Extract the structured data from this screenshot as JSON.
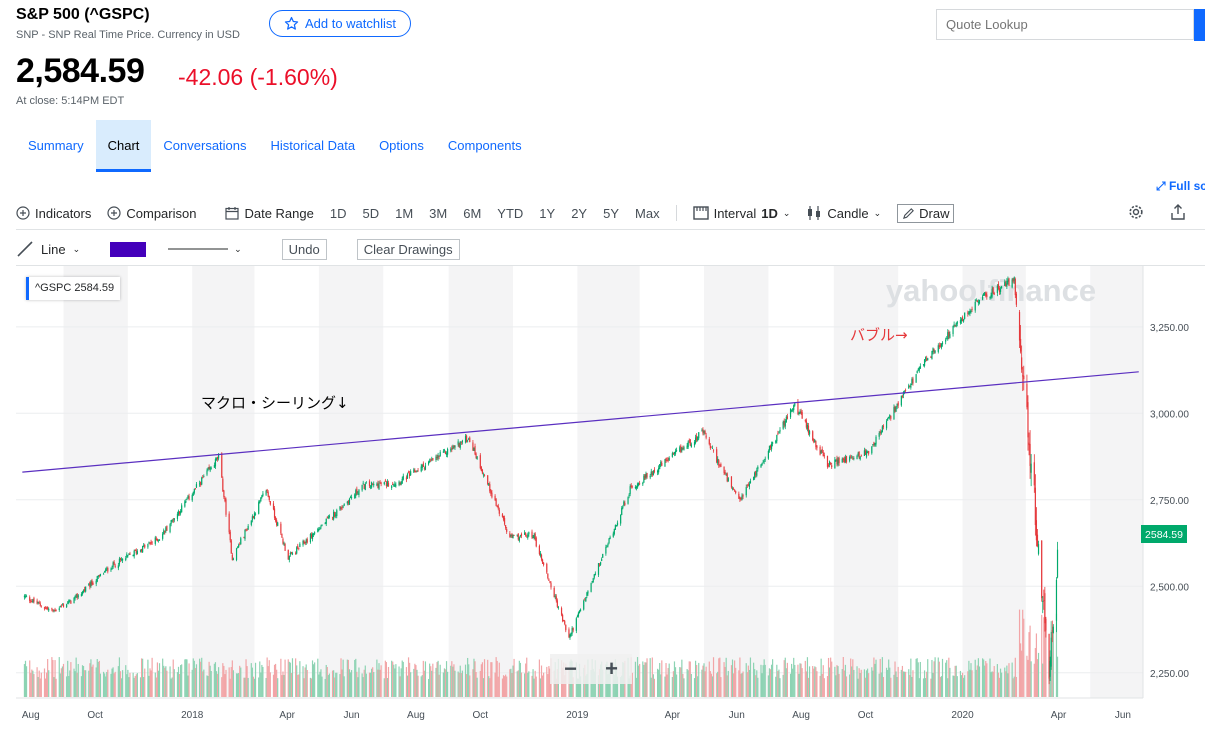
{
  "header": {
    "title": "S&P 500 (^GSPC)",
    "subtitle": "SNP - SNP Real Time Price. Currency in USD",
    "watchlist_label": "Add to watchlist",
    "quote_placeholder": "Quote Lookup",
    "price": "2,584.59",
    "change": "-42.06 (-1.60%)",
    "at_close": "At close: 5:14PM EDT",
    "change_color": "#eb0f29"
  },
  "tabs": [
    {
      "label": "Summary",
      "active": false
    },
    {
      "label": "Chart",
      "active": true
    },
    {
      "label": "Conversations",
      "active": false
    },
    {
      "label": "Historical Data",
      "active": false
    },
    {
      "label": "Options",
      "active": false
    },
    {
      "label": "Components",
      "active": false
    }
  ],
  "fullscreen_label": "Full sc",
  "toolbar": {
    "indicators": "Indicators",
    "comparison": "Comparison",
    "date_range": "Date Range",
    "ranges": [
      "1D",
      "5D",
      "1M",
      "3M",
      "6M",
      "YTD",
      "1Y",
      "2Y",
      "5Y",
      "Max"
    ],
    "interval_label": "Interval",
    "interval_value": "1D",
    "chart_type": "Candle",
    "draw": "Draw"
  },
  "draw_toolbar": {
    "line_label": "Line",
    "color": "#4400bb",
    "undo": "Undo",
    "clear": "Clear Drawings"
  },
  "legend": {
    "symbol": "^GSPC",
    "value": "2584.59"
  },
  "watermark": "yahoo!finance",
  "annotations": {
    "ceiling": "マクロ・シーリング↓",
    "bubble": "バブル→"
  },
  "current_price_label": "2584.59",
  "chart_data": {
    "type": "candlestick",
    "series": [
      {
        "name": "^GSPC",
        "color_up": "#00a96b",
        "color_down": "#e5383b"
      }
    ],
    "x_ticks": [
      "Aug",
      "Oct",
      "2018",
      "Apr",
      "Jun",
      "Aug",
      "Oct",
      "2019",
      "Apr",
      "Jun",
      "Aug",
      "Oct",
      "2020",
      "Apr",
      "Jun"
    ],
    "y_ticks": [
      "3,250.00",
      "3,000.00",
      "2,750.00",
      "2,500.00",
      "2,250.00"
    ],
    "ylim": [
      2180,
      3420
    ],
    "close_points": [
      [
        "2017-07-26",
        2470
      ],
      [
        "2017-08-21",
        2428
      ],
      [
        "2017-09-10",
        2460
      ],
      [
        "2017-10-15",
        2555
      ],
      [
        "2017-12-01",
        2640
      ],
      [
        "2018-01-26",
        2873
      ],
      [
        "2018-02-08",
        2581
      ],
      [
        "2018-03-12",
        2780
      ],
      [
        "2018-04-02",
        2582
      ],
      [
        "2018-06-12",
        2790
      ],
      [
        "2018-07-15",
        2800
      ],
      [
        "2018-09-20",
        2930
      ],
      [
        "2018-10-29",
        2640
      ],
      [
        "2018-11-20",
        2650
      ],
      [
        "2018-12-24",
        2351
      ],
      [
        "2019-02-20",
        2780
      ],
      [
        "2019-04-30",
        2945
      ],
      [
        "2019-06-03",
        2744
      ],
      [
        "2019-07-26",
        3025
      ],
      [
        "2019-08-26",
        2850
      ],
      [
        "2019-10-03",
        2887
      ],
      [
        "2019-11-27",
        3153
      ],
      [
        "2020-01-17",
        3330
      ],
      [
        "2020-02-19",
        3386
      ],
      [
        "2020-03-09",
        2746
      ],
      [
        "2020-03-23",
        2237
      ],
      [
        "2020-03-31",
        2584.59
      ]
    ],
    "trendline": {
      "start": [
        "2017-07-24",
        2830
      ],
      "end": [
        "2020-06-16",
        3120
      ]
    },
    "volume": "yes",
    "grid": true
  }
}
